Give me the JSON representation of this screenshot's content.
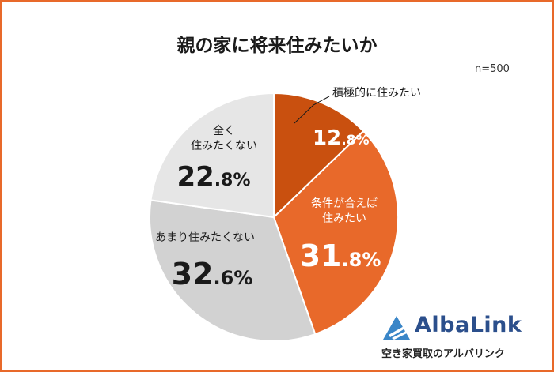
{
  "chart_data": {
    "type": "pie",
    "title": "親の家に将来住みたいか",
    "sample_size": "n=500",
    "slices": [
      {
        "label": "積極的に住みたい",
        "value": 12.8,
        "value_int": "12",
        "value_dec": ".8%",
        "color": "#c9500f"
      },
      {
        "label": "条件が合えば住みたい",
        "label_lines": [
          "条件が合えば",
          "住みたい"
        ],
        "value": 31.8,
        "value_int": "31",
        "value_dec": ".8%",
        "color": "#e8692a"
      },
      {
        "label": "あまり住みたくない",
        "value": 32.6,
        "value_int": "32",
        "value_dec": ".6%",
        "color": "#d2d2d2"
      },
      {
        "label": "全く住みたくない",
        "label_lines": [
          "全く",
          "住みたくない"
        ],
        "value": 22.8,
        "value_int": "22",
        "value_dec": ".8%",
        "color": "#e6e6e6"
      }
    ]
  },
  "brand": {
    "name": "AlbaLink",
    "tagline": "空き家買取のアルバリンク",
    "logo_color": "#3a86c8",
    "name_color": "#2b4f8c"
  },
  "colors": {
    "border": "#e8692a"
  }
}
